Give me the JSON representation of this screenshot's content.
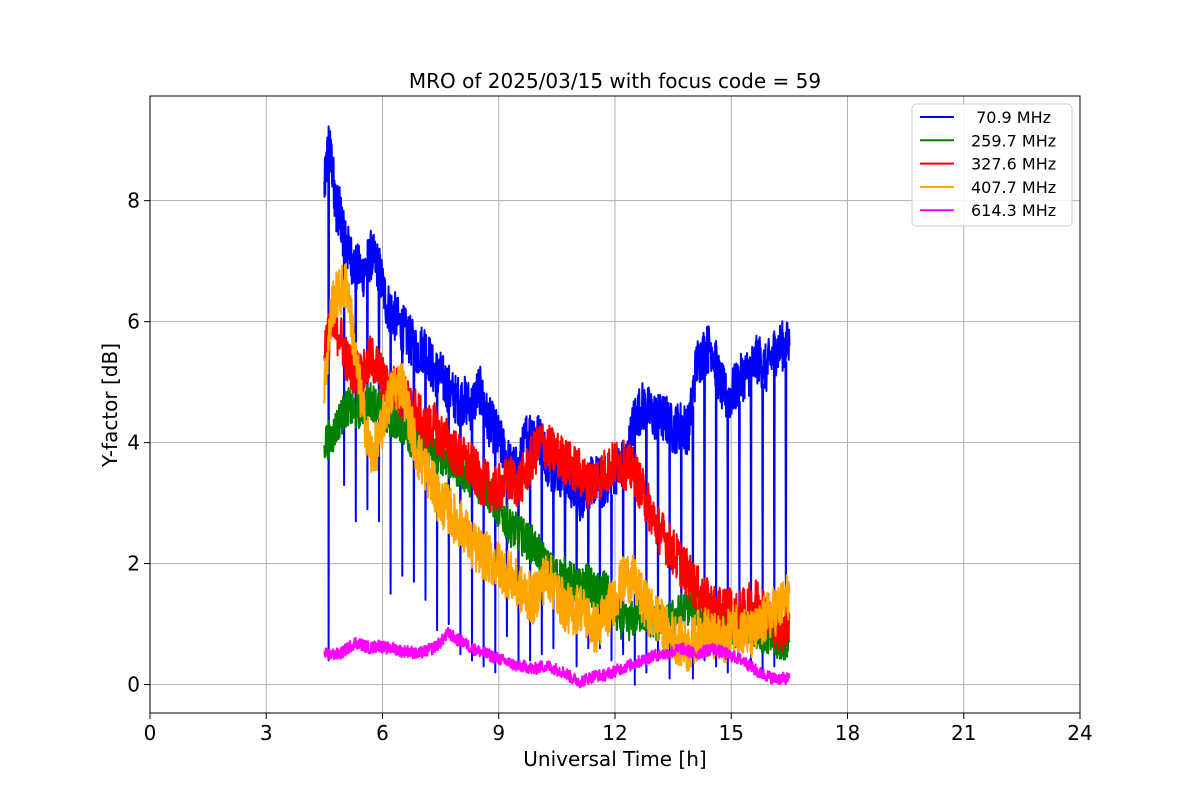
{
  "chart_data": {
    "type": "line",
    "title": "MRO of 2025/03/15 with focus code = 59",
    "xlabel": "Universal Time [h]",
    "ylabel": "Y-factor [dB]",
    "xlim": [
      0,
      24
    ],
    "ylim": [
      -0.47,
      9.73
    ],
    "xticks": [
      0,
      3,
      6,
      9,
      12,
      15,
      18,
      21,
      24
    ],
    "xtick_labels": [
      "0",
      "3",
      "6",
      "9",
      "12",
      "15",
      "18",
      "21",
      "24"
    ],
    "yticks": [
      0,
      2,
      4,
      6,
      8
    ],
    "ytick_labels": [
      "0",
      "2",
      "4",
      "6",
      "8"
    ],
    "grid": true,
    "legend_position": "top-right",
    "series": [
      {
        "name": " 70.9 MHz",
        "color": "#0000ff",
        "x": [
          4.5,
          4.6,
          4.7,
          4.8,
          4.9,
          5.0,
          5.1,
          5.3,
          5.5,
          5.7,
          5.9,
          6.1,
          6.3,
          6.5,
          6.7,
          6.9,
          7.1,
          7.3,
          7.5,
          7.7,
          7.9,
          8.1,
          8.3,
          8.5,
          8.7,
          8.9,
          9.1,
          9.3,
          9.5,
          9.7,
          9.9,
          10.1,
          10.3,
          10.5,
          10.7,
          10.9,
          11.1,
          11.3,
          11.5,
          11.7,
          11.9,
          12.1,
          12.3,
          12.5,
          12.7,
          12.9,
          13.1,
          13.3,
          13.5,
          13.7,
          13.9,
          14.1,
          14.3,
          14.5,
          14.7,
          14.9,
          15.1,
          15.3,
          15.5,
          15.7,
          15.9,
          16.1,
          16.3,
          16.5
        ],
        "y": [
          8.2,
          8.9,
          8.6,
          7.9,
          7.8,
          7.4,
          7.2,
          6.9,
          6.8,
          7.1,
          6.9,
          6.3,
          6.1,
          5.9,
          5.7,
          5.5,
          5.6,
          5.2,
          5.1,
          4.9,
          4.7,
          4.7,
          4.6,
          4.9,
          4.4,
          4.2,
          3.9,
          3.6,
          3.5,
          4.1,
          4.2,
          4.0,
          3.6,
          3.6,
          3.4,
          3.3,
          3.1,
          3.3,
          3.4,
          3.3,
          3.5,
          3.6,
          3.7,
          4.4,
          4.6,
          4.5,
          4.4,
          4.4,
          4.2,
          4.3,
          4.2,
          5.3,
          5.5,
          5.6,
          5.0,
          4.7,
          4.9,
          5.1,
          5.2,
          5.4,
          5.2,
          5.5,
          5.6,
          5.6
        ],
        "dips": [
          [
            4.6,
            0.4
          ],
          [
            5.0,
            3.3
          ],
          [
            5.3,
            2.7
          ],
          [
            5.6,
            2.9
          ],
          [
            5.9,
            2.7
          ],
          [
            6.2,
            1.5
          ],
          [
            6.5,
            1.8
          ],
          [
            6.8,
            1.7
          ],
          [
            7.1,
            1.4
          ],
          [
            7.4,
            0.9
          ],
          [
            7.7,
            1.0
          ],
          [
            8.0,
            0.5
          ],
          [
            8.3,
            0.4
          ],
          [
            8.6,
            0.3
          ],
          [
            8.9,
            0.2
          ],
          [
            9.2,
            0.8
          ],
          [
            9.5,
            0.3
          ],
          [
            9.8,
            0.4
          ],
          [
            10.1,
            0.5
          ],
          [
            10.4,
            0.6
          ],
          [
            10.7,
            0.9
          ],
          [
            11.0,
            0.3
          ],
          [
            11.3,
            0.6
          ],
          [
            11.6,
            0.6
          ],
          [
            11.9,
            0.4
          ],
          [
            12.2,
            0.5
          ],
          [
            12.5,
            0.0
          ],
          [
            12.8,
            0.2
          ],
          [
            13.1,
            0.4
          ],
          [
            13.4,
            0.1
          ],
          [
            13.7,
            0.5
          ],
          [
            14.0,
            0.1
          ],
          [
            14.3,
            0.4
          ],
          [
            14.6,
            0.3
          ],
          [
            14.9,
            0.2
          ],
          [
            15.2,
            0.7
          ],
          [
            15.5,
            0.3
          ],
          [
            15.8,
            0.2
          ],
          [
            16.1,
            0.3
          ],
          [
            16.4,
            0.8
          ]
        ]
      },
      {
        "name": "259.7 MHz",
        "color": "#008000",
        "x": [
          4.5,
          4.7,
          4.9,
          5.1,
          5.3,
          5.5,
          5.7,
          5.9,
          6.1,
          6.3,
          6.5,
          6.7,
          6.9,
          7.1,
          7.3,
          7.5,
          7.7,
          7.9,
          8.1,
          8.3,
          8.5,
          8.7,
          8.9,
          9.1,
          9.3,
          9.5,
          9.7,
          9.9,
          10.1,
          10.3,
          10.5,
          10.7,
          10.9,
          11.1,
          11.3,
          11.5,
          11.7,
          11.9,
          12.1,
          12.3,
          12.5,
          12.7,
          12.9,
          13.1,
          13.3,
          13.5,
          13.7,
          13.9,
          14.1,
          14.3,
          14.5,
          14.7,
          14.9,
          15.1,
          15.3,
          15.5,
          15.7,
          15.9,
          16.1,
          16.3,
          16.5
        ],
        "y": [
          4.0,
          4.1,
          4.4,
          4.6,
          4.5,
          4.6,
          4.7,
          4.6,
          4.4,
          4.4,
          4.3,
          4.1,
          4.0,
          3.9,
          3.8,
          3.8,
          3.7,
          3.6,
          3.5,
          3.4,
          3.3,
          3.2,
          3.0,
          2.8,
          2.6,
          2.5,
          2.4,
          2.3,
          2.1,
          1.9,
          1.8,
          1.8,
          1.7,
          1.6,
          1.7,
          1.5,
          1.6,
          1.4,
          1.1,
          1.0,
          1.1,
          1.2,
          1.1,
          1.0,
          1.0,
          1.1,
          1.2,
          1.3,
          1.2,
          1.1,
          1.0,
          0.9,
          0.9,
          0.9,
          1.0,
          1.0,
          0.9,
          0.8,
          0.7,
          0.7,
          0.7
        ]
      },
      {
        "name": "327.6 MHz",
        "color": "#ff0000",
        "x": [
          4.5,
          4.7,
          4.9,
          5.1,
          5.3,
          5.5,
          5.7,
          5.9,
          6.1,
          6.3,
          6.5,
          6.7,
          6.9,
          7.1,
          7.3,
          7.5,
          7.7,
          7.9,
          8.1,
          8.3,
          8.5,
          8.7,
          8.9,
          9.1,
          9.3,
          9.5,
          9.7,
          9.9,
          10.1,
          10.3,
          10.5,
          10.7,
          10.9,
          11.1,
          11.3,
          11.5,
          11.7,
          11.9,
          12.1,
          12.3,
          12.5,
          12.7,
          12.9,
          13.1,
          13.3,
          13.5,
          13.7,
          13.9,
          14.1,
          14.3,
          14.5,
          14.7,
          14.9,
          15.1,
          15.3,
          15.5,
          15.7,
          15.9,
          16.1,
          16.3,
          16.5
        ],
        "y": [
          5.6,
          5.9,
          5.8,
          5.3,
          5.2,
          5.1,
          5.4,
          5.2,
          4.9,
          4.9,
          4.8,
          4.6,
          4.5,
          4.2,
          4.3,
          4.1,
          4.0,
          3.8,
          3.7,
          3.6,
          3.4,
          3.3,
          3.2,
          3.3,
          3.4,
          3.3,
          3.5,
          3.8,
          4.0,
          3.9,
          3.8,
          3.7,
          3.6,
          3.5,
          3.3,
          3.4,
          3.5,
          3.6,
          3.7,
          3.6,
          3.5,
          3.2,
          2.9,
          2.6,
          2.4,
          2.2,
          2.0,
          1.8,
          1.6,
          1.4,
          1.3,
          1.2,
          1.3,
          1.1,
          1.2,
          1.3,
          1.4,
          1.2,
          1.0,
          0.9,
          1.1
        ]
      },
      {
        "name": "407.7 MHz",
        "color": "#ffa500",
        "x": [
          4.5,
          4.7,
          4.9,
          5.1,
          5.3,
          5.5,
          5.7,
          5.9,
          6.1,
          6.3,
          6.5,
          6.7,
          6.9,
          7.1,
          7.3,
          7.5,
          7.7,
          7.9,
          8.1,
          8.3,
          8.5,
          8.7,
          8.9,
          9.1,
          9.3,
          9.5,
          9.7,
          9.9,
          10.1,
          10.3,
          10.5,
          10.7,
          10.9,
          11.1,
          11.3,
          11.5,
          11.7,
          11.9,
          12.1,
          12.3,
          12.5,
          12.7,
          12.9,
          13.1,
          13.3,
          13.5,
          13.7,
          13.9,
          14.1,
          14.3,
          14.5,
          14.7,
          14.9,
          15.1,
          15.3,
          15.5,
          15.7,
          15.9,
          16.1,
          16.3,
          16.5
        ],
        "y": [
          4.9,
          6.3,
          6.5,
          6.6,
          5.4,
          4.5,
          3.8,
          4.0,
          4.6,
          4.9,
          5.0,
          4.4,
          3.8,
          3.6,
          3.3,
          3.0,
          2.9,
          2.7,
          2.6,
          2.3,
          2.2,
          2.1,
          2.0,
          1.9,
          1.8,
          1.6,
          1.5,
          1.4,
          1.7,
          1.8,
          1.5,
          1.3,
          1.2,
          1.3,
          1.1,
          0.9,
          1.1,
          1.3,
          1.6,
          1.8,
          1.7,
          1.4,
          1.2,
          1.1,
          0.9,
          0.8,
          0.7,
          0.6,
          0.8,
          0.9,
          0.8,
          0.7,
          0.8,
          1.0,
          0.9,
          0.8,
          0.9,
          1.1,
          1.2,
          1.3,
          1.5
        ]
      },
      {
        "name": "614.3 MHz",
        "color": "#ff00ff",
        "x": [
          4.5,
          4.7,
          4.9,
          5.1,
          5.3,
          5.5,
          5.7,
          5.9,
          6.1,
          6.3,
          6.5,
          6.7,
          6.9,
          7.1,
          7.3,
          7.5,
          7.7,
          7.9,
          8.1,
          8.3,
          8.5,
          8.7,
          8.9,
          9.1,
          9.3,
          9.5,
          9.7,
          9.9,
          10.1,
          10.3,
          10.5,
          10.7,
          10.9,
          11.1,
          11.3,
          11.5,
          11.7,
          11.9,
          12.1,
          12.3,
          12.5,
          12.7,
          12.9,
          13.1,
          13.3,
          13.5,
          13.7,
          13.9,
          14.1,
          14.3,
          14.5,
          14.7,
          14.9,
          15.1,
          15.3,
          15.5,
          15.7,
          15.9,
          16.1,
          16.3,
          16.5
        ],
        "y": [
          0.5,
          0.5,
          0.5,
          0.6,
          0.7,
          0.65,
          0.6,
          0.65,
          0.6,
          0.6,
          0.55,
          0.55,
          0.5,
          0.55,
          0.6,
          0.7,
          0.85,
          0.75,
          0.7,
          0.6,
          0.55,
          0.5,
          0.45,
          0.4,
          0.35,
          0.3,
          0.3,
          0.25,
          0.3,
          0.3,
          0.25,
          0.2,
          0.1,
          0.05,
          0.1,
          0.15,
          0.15,
          0.2,
          0.25,
          0.3,
          0.35,
          0.4,
          0.45,
          0.5,
          0.5,
          0.55,
          0.6,
          0.55,
          0.5,
          0.55,
          0.6,
          0.55,
          0.5,
          0.45,
          0.4,
          0.3,
          0.2,
          0.15,
          0.1,
          0.1,
          0.1
        ]
      }
    ]
  }
}
